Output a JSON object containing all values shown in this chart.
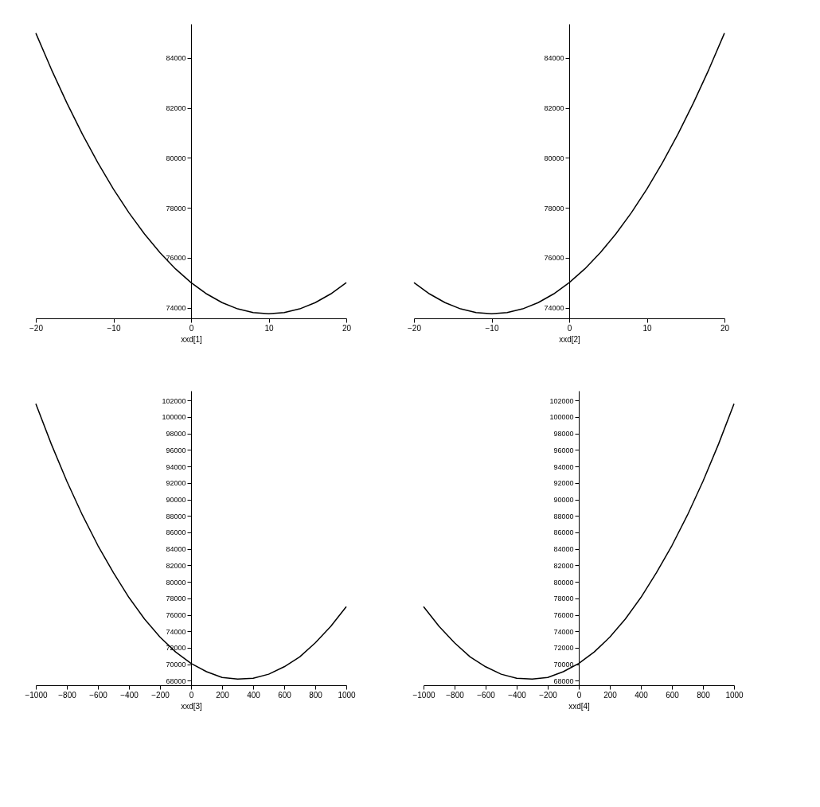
{
  "chart_data": [
    {
      "type": "line",
      "xlabel": "xxd[1]",
      "color": "#000000",
      "grid": false,
      "xlim": [
        -20,
        20
      ],
      "ylim": [
        73570,
        85370
      ],
      "xticks": [
        -20,
        -10,
        0,
        10,
        20
      ],
      "yticks": [
        74000,
        76000,
        78000,
        80000,
        82000,
        84000
      ],
      "x": [
        -20,
        -18,
        -16,
        -14,
        -12,
        -10,
        -8,
        -6,
        -4,
        -2,
        0,
        2,
        4,
        6,
        8,
        10,
        12,
        14,
        16,
        18,
        20
      ],
      "values": [
        85000,
        83550,
        82200,
        80950,
        79800,
        78750,
        77800,
        76950,
        76200,
        75550,
        75000,
        74550,
        74200,
        73950,
        73800,
        73750,
        73800,
        73950,
        74200,
        74550,
        75000
      ]
    },
    {
      "type": "line",
      "xlabel": "xxd[2]",
      "color": "#000000",
      "grid": false,
      "xlim": [
        -20,
        20
      ],
      "ylim": [
        73570,
        85370
      ],
      "xticks": [
        -20,
        -10,
        0,
        10,
        20
      ],
      "yticks": [
        74000,
        76000,
        78000,
        80000,
        82000,
        84000
      ],
      "x": [
        -20,
        -18,
        -16,
        -14,
        -12,
        -10,
        -8,
        -6,
        -4,
        -2,
        0,
        2,
        4,
        6,
        8,
        10,
        12,
        14,
        16,
        18,
        20
      ],
      "values": [
        75000,
        74550,
        74200,
        73950,
        73800,
        73750,
        73800,
        73950,
        74200,
        74550,
        75000,
        75550,
        76200,
        76950,
        77800,
        78750,
        79800,
        80950,
        82200,
        83550,
        85000
      ]
    },
    {
      "type": "line",
      "xlabel": "xxd[3]",
      "color": "#000000",
      "grid": false,
      "xlim": [
        -1000,
        1000
      ],
      "ylim": [
        67460,
        103180
      ],
      "xticks": [
        -1000,
        -800,
        -600,
        -400,
        -200,
        0,
        200,
        400,
        600,
        800,
        1000
      ],
      "yticks": [
        68000,
        70000,
        72000,
        74000,
        76000,
        78000,
        80000,
        82000,
        84000,
        86000,
        88000,
        90000,
        92000,
        94000,
        96000,
        98000,
        100000,
        102000
      ],
      "x": [
        -1000,
        -900,
        -800,
        -700,
        -600,
        -500,
        -400,
        -300,
        -200,
        -100,
        0,
        100,
        200,
        300,
        400,
        500,
        600,
        700,
        800,
        900,
        1000
      ],
      "values": [
        101600,
        96700,
        92200,
        88100,
        84400,
        81100,
        78100,
        75500,
        73300,
        71500,
        70100,
        69100,
        68400,
        68200,
        68300,
        68800,
        69700,
        70900,
        72600,
        74600,
        77000
      ]
    },
    {
      "type": "line",
      "xlabel": "xxd[4]",
      "color": "#000000",
      "grid": false,
      "xlim": [
        -1000,
        1000
      ],
      "ylim": [
        67460,
        103180
      ],
      "xticks": [
        -1000,
        -800,
        -600,
        -400,
        -200,
        0,
        200,
        400,
        600,
        800,
        1000
      ],
      "yticks": [
        68000,
        70000,
        72000,
        74000,
        76000,
        78000,
        80000,
        82000,
        84000,
        86000,
        88000,
        90000,
        92000,
        94000,
        96000,
        98000,
        100000,
        102000
      ],
      "x": [
        -1000,
        -900,
        -800,
        -700,
        -600,
        -500,
        -400,
        -300,
        -200,
        -100,
        0,
        100,
        200,
        300,
        400,
        500,
        600,
        700,
        800,
        900,
        1000
      ],
      "values": [
        77000,
        74600,
        72600,
        70900,
        69700,
        68800,
        68300,
        68200,
        68400,
        69100,
        70100,
        71500,
        73300,
        75500,
        78100,
        81100,
        84400,
        88100,
        92200,
        96700,
        101600
      ]
    }
  ]
}
